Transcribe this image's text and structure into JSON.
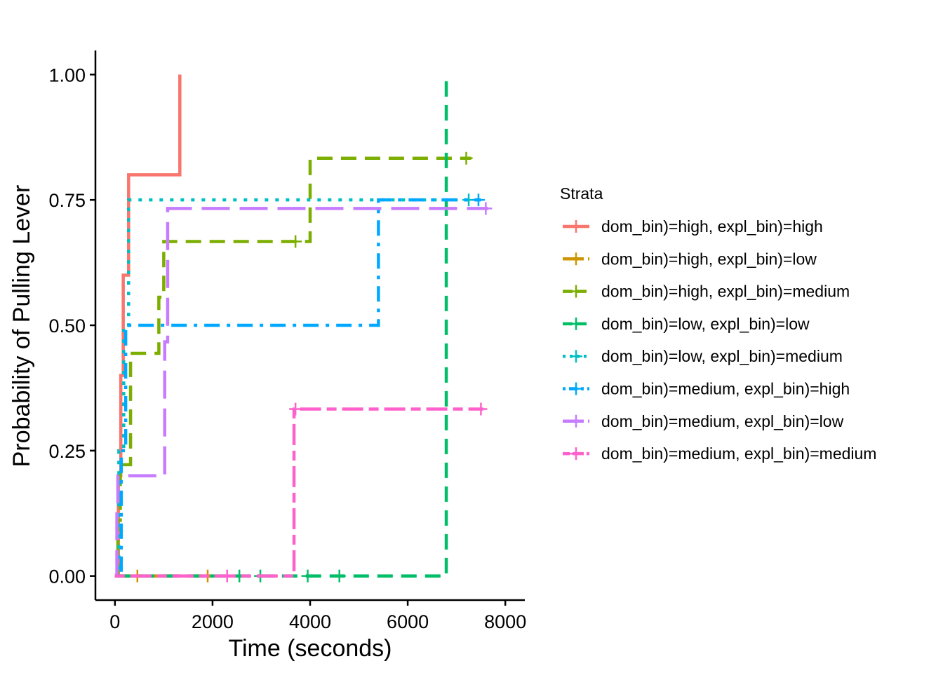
{
  "chart_data": {
    "type": "line",
    "subtype": "step (Kaplan-Meier style cumulative incidence)",
    "title": "",
    "xlabel": "Time (seconds)",
    "ylabel": "Probability of Pulling Lever",
    "xlim": [
      -400,
      8400
    ],
    "ylim": [
      -0.048,
      1.048
    ],
    "x_ticks": [
      0,
      2000,
      4000,
      6000,
      8000
    ],
    "x_tick_labels": [
      "0",
      "2000",
      "4000",
      "6000",
      "8000"
    ],
    "y_ticks": [
      0,
      0.25,
      0.5,
      0.75,
      1.0
    ],
    "y_tick_labels": [
      "0.00",
      "0.25",
      "0.50",
      "0.75",
      "1.00"
    ],
    "grid": false,
    "legend": {
      "title": "Strata",
      "placement": "right"
    },
    "series": [
      {
        "name": "dom_bin)=high, expl_bin)=high",
        "color": "#F8766D",
        "dash": "solid",
        "steps": [
          [
            0,
            0
          ],
          [
            70,
            0.2
          ],
          [
            120,
            0.4
          ],
          [
            170,
            0.6
          ],
          [
            280,
            0.8
          ],
          [
            1330,
            1.0
          ]
        ],
        "end": 1330,
        "censor": []
      },
      {
        "name": "dom_bin)=high, expl_bin)=low",
        "color": "#CD9600",
        "dash": "longdash",
        "steps": [
          [
            0,
            0
          ]
        ],
        "end": 2000,
        "censor": [
          460,
          1900
        ]
      },
      {
        "name": "dom_bin)=high, expl_bin)=medium",
        "color": "#7CAE00",
        "dash": "dashed",
        "steps": [
          [
            0,
            0
          ],
          [
            60,
            0.111
          ],
          [
            110,
            0.222
          ],
          [
            320,
            0.444
          ],
          [
            900,
            0.556
          ],
          [
            1000,
            0.667
          ],
          [
            4000,
            0.833
          ]
        ],
        "end": 7300,
        "censor": [
          3700,
          7200
        ]
      },
      {
        "name": "dom_bin)=low, expl_bin)=low",
        "color": "#00BE67",
        "dash": "dashed",
        "steps": [
          [
            0,
            0
          ],
          [
            6790,
            1.0
          ]
        ],
        "end": 6790,
        "censor": [
          2550,
          2980,
          3950,
          4600
        ]
      },
      {
        "name": "dom_bin)=low, expl_bin)=medium",
        "color": "#00BFC4",
        "dash": "dotted",
        "steps": [
          [
            0,
            0
          ],
          [
            80,
            0.25
          ],
          [
            180,
            0.5
          ],
          [
            280,
            0.75
          ]
        ],
        "end": 7600,
        "censor": [
          7250
        ]
      },
      {
        "name": "dom_bin)=medium, expl_bin)=high",
        "color": "#00A9FF",
        "dash": "dotdash",
        "steps": [
          [
            0,
            0
          ],
          [
            130,
            0.25
          ],
          [
            220,
            0.5
          ],
          [
            5400,
            0.75
          ]
        ],
        "end": 7500,
        "censor": [
          7450
        ]
      },
      {
        "name": "dom_bin)=medium, expl_bin)=low",
        "color": "#C77CFF",
        "dash": "longdash",
        "steps": [
          [
            0,
            0
          ],
          [
            40,
            0.133
          ],
          [
            60,
            0.2
          ],
          [
            1020,
            0.467
          ],
          [
            1080,
            0.733
          ]
        ],
        "end": 7650,
        "censor": [
          7600
        ]
      },
      {
        "name": "dom_bin)=medium, expl_bin)=medium",
        "color": "#FF61CC",
        "dash": "twodash",
        "steps": [
          [
            0,
            0
          ],
          [
            3670,
            0.333
          ]
        ],
        "end": 7550,
        "censor": [
          2300,
          3700,
          7500
        ]
      }
    ]
  }
}
